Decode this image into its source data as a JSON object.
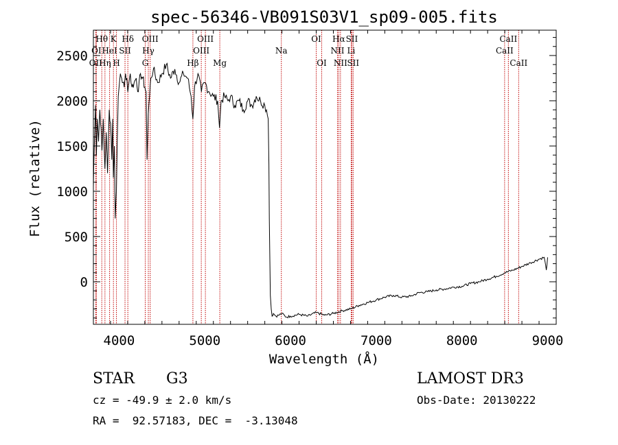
{
  "chart_data": {
    "type": "line",
    "title": "spec-56346-VB091S03V1_sp09-005.fits",
    "xlabel": "Wavelength (Å)",
    "ylabel": "Flux (relative)",
    "xlim": [
      3700,
      9100
    ],
    "ylim": [
      -470,
      2780
    ],
    "xticks": [
      4000,
      5000,
      6000,
      7000,
      8000,
      9000
    ],
    "yticks": [
      0,
      500,
      1000,
      1500,
      2000,
      2500
    ],
    "series": [
      {
        "name": "flux",
        "x": [
          3700,
          3705,
          3715,
          3725,
          3735,
          3745,
          3760,
          3775,
          3790,
          3800,
          3815,
          3825,
          3835,
          3850,
          3865,
          3875,
          3885,
          3900,
          3915,
          3925,
          3933,
          3945,
          3955,
          3968,
          3980,
          3990,
          4000,
          4015,
          4030,
          4045,
          4060,
          4075,
          4090,
          4101,
          4115,
          4130,
          4150,
          4175,
          4200,
          4225,
          4250,
          4275,
          4300,
          4315,
          4326,
          4340,
          4355,
          4370,
          4400,
          4450,
          4500,
          4550,
          4600,
          4650,
          4700,
          4750,
          4800,
          4840,
          4861,
          4880,
          4920,
          4960,
          5000,
          5050,
          5100,
          5150,
          5172,
          5190,
          5230,
          5270,
          5300,
          5350,
          5400,
          5450,
          5500,
          5550,
          5600,
          5650,
          5700,
          5720,
          5740,
          5748,
          5753,
          5758,
          5765,
          5775,
          5785,
          5800,
          5830,
          5860,
          5900,
          5950,
          6000,
          6100,
          6200,
          6300,
          6400,
          6500,
          6600,
          6700,
          6800,
          6900,
          7000,
          7100,
          7200,
          7300,
          7400,
          7500,
          7600,
          7700,
          7800,
          7900,
          8000,
          8100,
          8200,
          8300,
          8400,
          8500,
          8600,
          8700,
          8800,
          8900,
          8960,
          8985,
          9000
        ],
        "values": [
          1050,
          1300,
          1650,
          1950,
          1400,
          1800,
          1550,
          1900,
          1700,
          1450,
          1800,
          1500,
          1250,
          1650,
          1200,
          1550,
          1900,
          1750,
          1350,
          1800,
          1150,
          1500,
          700,
          1000,
          1600,
          2050,
          2150,
          2300,
          2250,
          2200,
          2150,
          2300,
          2250,
          2100,
          2200,
          2300,
          2150,
          2200,
          2250,
          2100,
          2300,
          2250,
          2150,
          2100,
          1350,
          1850,
          2050,
          2250,
          2350,
          2200,
          2300,
          2400,
          2250,
          2350,
          2200,
          2300,
          2250,
          2050,
          1800,
          2150,
          2300,
          2100,
          2200,
          2100,
          2050,
          2000,
          1700,
          2000,
          2050,
          2000,
          2050,
          1950,
          2000,
          1900,
          2000,
          1950,
          2050,
          2000,
          1950,
          1900,
          1800,
          1300,
          700,
          300,
          -150,
          -300,
          -380,
          -350,
          -380,
          -370,
          -350,
          -390,
          -380,
          -360,
          -380,
          -340,
          -370,
          -350,
          -320,
          -300,
          -260,
          -230,
          -200,
          -170,
          -150,
          -170,
          -160,
          -120,
          -110,
          -90,
          -80,
          -60,
          -50,
          -20,
          0,
          30,
          60,
          100,
          130,
          170,
          210,
          250,
          270,
          130,
          270
        ]
      }
    ],
    "lines": [
      {
        "label": "Hθ",
        "x": 3798,
        "row": 1
      },
      {
        "label": "OII",
        "x": 3727,
        "row": 3
      },
      {
        "label": "OI",
        "x": 3735,
        "row": 2
      },
      {
        "label": "Hη",
        "x": 3835,
        "row": 3
      },
      {
        "label": "HeI",
        "x": 3889,
        "row": 2
      },
      {
        "label": "K",
        "x": 3934,
        "row": 1
      },
      {
        "label": "H",
        "x": 3969,
        "row": 3
      },
      {
        "label": "SII",
        "x": 4069,
        "row": 2
      },
      {
        "label": "Hδ",
        "x": 4102,
        "row": 1
      },
      {
        "label": "G",
        "x": 4305,
        "row": 3
      },
      {
        "label": "OIII",
        "x": 4363,
        "row": 1
      },
      {
        "label": "Hγ",
        "x": 4341,
        "row": 2
      },
      {
        "label": "Hβ",
        "x": 4861,
        "row": 3
      },
      {
        "label": "OIII",
        "x": 4959,
        "row": 2
      },
      {
        "label": "OIII",
        "x": 5007,
        "row": 1
      },
      {
        "label": "Mg",
        "x": 5175,
        "row": 3
      },
      {
        "label": "Na",
        "x": 5893,
        "row": 2
      },
      {
        "label": "OI",
        "x": 6300,
        "row": 1
      },
      {
        "label": "OI",
        "x": 6364,
        "row": 3
      },
      {
        "label": "NII",
        "x": 6548,
        "row": 2
      },
      {
        "label": "Hα",
        "x": 6563,
        "row": 1
      },
      {
        "label": "NII",
        "x": 6583,
        "row": 3
      },
      {
        "label": "SII",
        "x": 6716,
        "row": 1
      },
      {
        "label": "Li",
        "x": 6708,
        "row": 2
      },
      {
        "label": "SII",
        "x": 6731,
        "row": 3
      },
      {
        "label": "CaII",
        "x": 8498,
        "row": 2
      },
      {
        "label": "CaII",
        "x": 8542,
        "row": 1
      },
      {
        "label": "CaII",
        "x": 8662,
        "row": 3
      }
    ]
  },
  "info": {
    "object_class": "STAR",
    "subclass": "G3",
    "survey": "LAMOST DR3",
    "cz": "cz = -49.9 ± 2.0 km/s",
    "obs_date": "Obs-Date: 20130222",
    "coords": "RA =  92.57183, DEC =  -3.13048"
  },
  "colors": {
    "line_marker": "#c00000",
    "spectrum": "#000000"
  }
}
